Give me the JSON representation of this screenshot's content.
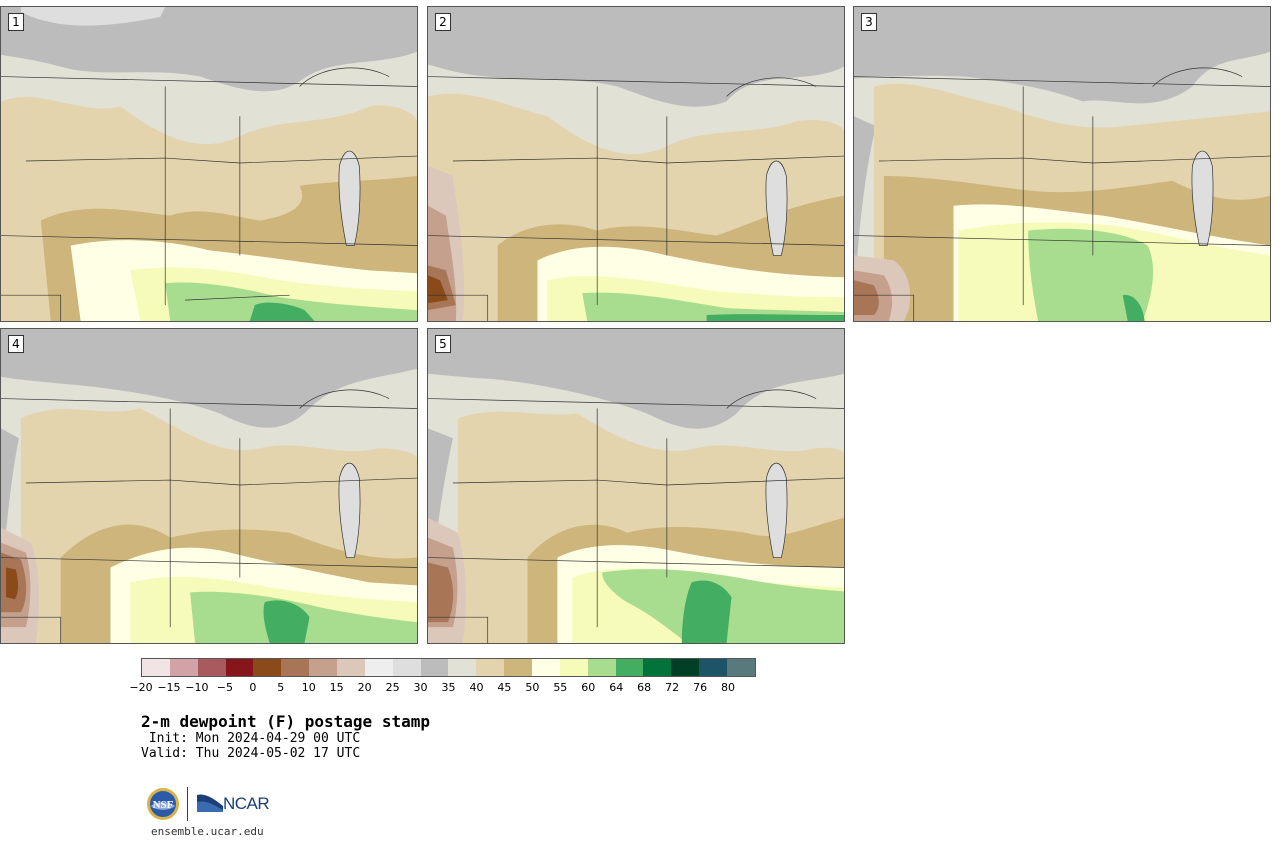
{
  "panels": [
    {
      "label": "1"
    },
    {
      "label": "2"
    },
    {
      "label": "3"
    },
    {
      "label": "4"
    },
    {
      "label": "5"
    }
  ],
  "colorbar": {
    "colors": [
      "#f2e4e4",
      "#d2a3a6",
      "#a85a5f",
      "#87161c",
      "#8a4a1a",
      "#a87657",
      "#c5a08c",
      "#dcc8ba",
      "#eeeeee",
      "#dedede",
      "#bcbcbc",
      "#e1e1d6",
      "#e4d4ad",
      "#cdb57c",
      "#feffe5",
      "#f6fbba",
      "#a8dd90",
      "#43ad62",
      "#03733b",
      "#023f26",
      "#1e5468",
      "#587a7c"
    ],
    "tick_labels": [
      "−20",
      "−15",
      "−10",
      "−5",
      "0",
      "5",
      "10",
      "15",
      "20",
      "25",
      "30",
      "35",
      "40",
      "45",
      "50",
      "55",
      "60",
      "64",
      "68",
      "72",
      "76",
      "80"
    ]
  },
  "title": {
    "main": "2-m dewpoint (F) postage stamp",
    "init": " Init: Mon 2024-04-29 00 UTC",
    "valid": "Valid: Thu 2024-05-02 17 UTC"
  },
  "logos": {
    "nsf": "NSF",
    "ncar": "NCAR",
    "url": "ensemble.ucar.edu"
  }
}
